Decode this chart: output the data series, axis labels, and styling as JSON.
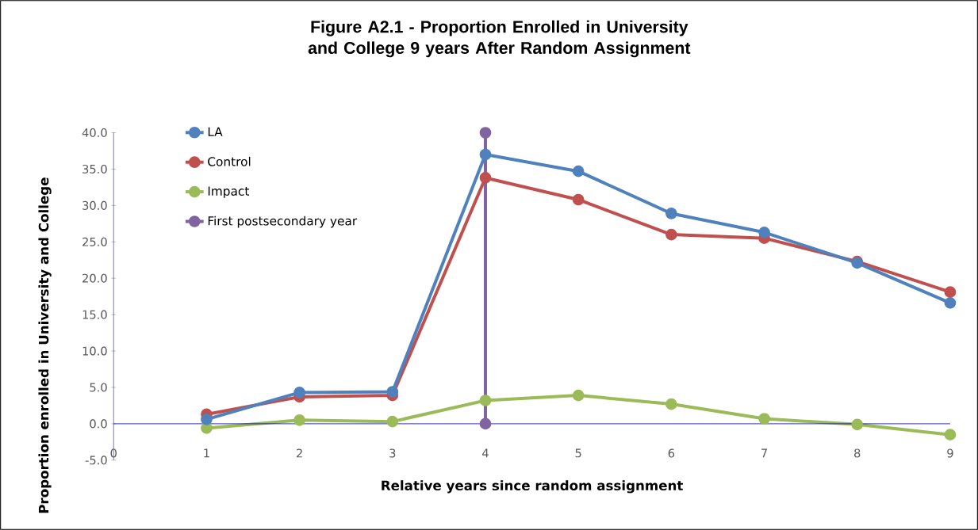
{
  "chart_data": {
    "type": "line",
    "title": "Figure A2.1 - Proportion Enrolled in University and College 9 years After Random Assignment",
    "xlabel": "Relative years since random assignment",
    "ylabel": "Proportion enrolled in University and College",
    "xlim": [
      0,
      9
    ],
    "xticks": [
      0,
      1,
      2,
      3,
      4,
      5,
      6,
      7,
      8,
      9
    ],
    "ylim": [
      -5,
      40
    ],
    "yticks": [
      {
        "value": -5,
        "label": "-5.0"
      },
      {
        "value": 0,
        "label": "0.0"
      },
      {
        "value": 5,
        "label": "5.0"
      },
      {
        "value": 10,
        "label": "10.0"
      },
      {
        "value": 15,
        "label": "15.0"
      },
      {
        "value": 20,
        "label": "20.0"
      },
      {
        "value": 25,
        "label": "25.0"
      },
      {
        "value": 30,
        "label": "30.0"
      },
      {
        "value": 35,
        "label": "35.0"
      },
      {
        "value": 40,
        "label": "40.0"
      }
    ],
    "legend": "top left",
    "marker": "circle",
    "line_style": "solid",
    "series": [
      {
        "name": "LA",
        "color": "#4f81bd",
        "x": [
          1,
          2,
          3,
          4,
          5,
          6,
          7,
          8,
          9
        ],
        "values": [
          0.6,
          4.3,
          4.4,
          37.0,
          34.7,
          28.9,
          26.3,
          22.1,
          16.6
        ]
      },
      {
        "name": "Control",
        "color": "#c0504d",
        "x": [
          1,
          2,
          3,
          4,
          5,
          6,
          7,
          8,
          9
        ],
        "values": [
          1.3,
          3.7,
          3.9,
          33.8,
          30.8,
          26.0,
          25.5,
          22.3,
          18.1
        ]
      },
      {
        "name": "Impact",
        "color": "#9bbb59",
        "x": [
          1,
          2,
          3,
          4,
          5,
          6,
          7,
          8,
          9
        ],
        "values": [
          -0.6,
          0.5,
          0.3,
          3.2,
          3.9,
          2.7,
          0.7,
          -0.1,
          -1.5
        ]
      },
      {
        "name": "First postsecondary year",
        "color": "#8064a2",
        "x": [
          4,
          4
        ],
        "values": [
          0,
          40
        ]
      }
    ]
  }
}
